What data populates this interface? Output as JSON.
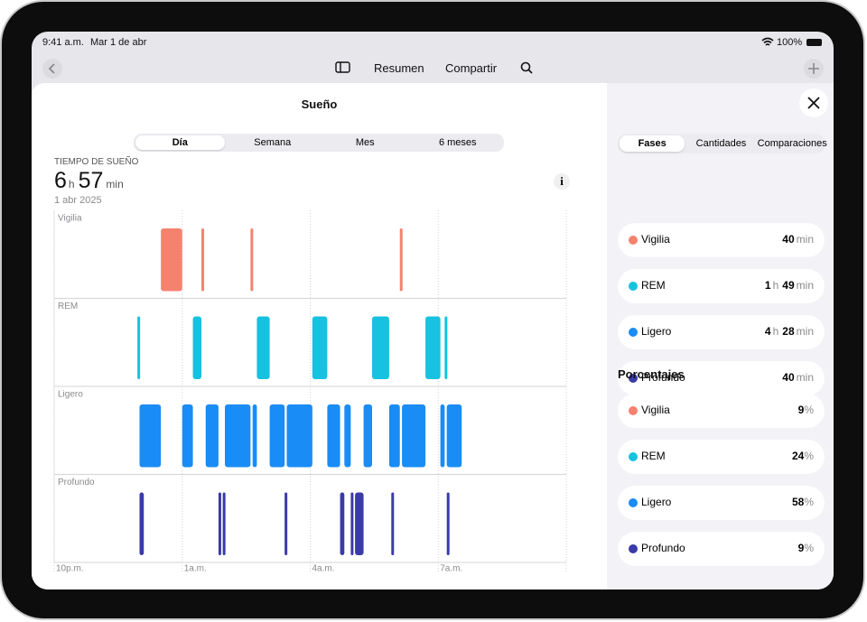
{
  "status_bar": {
    "time": "9:41 a.m.",
    "date": "Mar 1 de abr",
    "battery": "100%"
  },
  "toolbar": {
    "summary": "Resumen",
    "share": "Compartir"
  },
  "title": "Sueño",
  "range_tabs": [
    "Día",
    "Semana",
    "Mes",
    "6 meses"
  ],
  "summary": {
    "label": "TIEMPO DE SUEÑO",
    "hours": 6,
    "hours_unit": "h",
    "minutes": 57,
    "minutes_unit": "min",
    "date": "1 abr 2025"
  },
  "chart_data": {
    "type": "sleep-stages",
    "xlim": [
      0,
      12
    ],
    "xticks": [
      {
        "value": 0,
        "label": "10p.m."
      },
      {
        "value": 3,
        "label": "1a.m."
      },
      {
        "value": 6,
        "label": "4a.m."
      },
      {
        "value": 9,
        "label": "7a.m."
      }
    ],
    "series": [
      {
        "name": "Vigilia",
        "color": "#f5826e",
        "segments": [
          [
            2.5,
            3.0
          ],
          [
            3.45,
            3.5
          ],
          [
            4.6,
            4.65
          ],
          [
            8.1,
            8.15
          ]
        ]
      },
      {
        "name": "REM",
        "color": "#16c2e0",
        "segments": [
          [
            1.95,
            2.0
          ],
          [
            3.25,
            3.45
          ],
          [
            4.75,
            5.05
          ],
          [
            6.05,
            6.4
          ],
          [
            7.45,
            7.85
          ],
          [
            8.7,
            9.05
          ],
          [
            9.15,
            9.2
          ]
        ]
      },
      {
        "name": "Ligero",
        "color": "#1a8cf5",
        "segments": [
          [
            2.0,
            2.5
          ],
          [
            3.0,
            3.25
          ],
          [
            3.55,
            3.85
          ],
          [
            4.0,
            4.6
          ],
          [
            4.65,
            4.75
          ],
          [
            5.05,
            5.4
          ],
          [
            5.45,
            6.05
          ],
          [
            6.4,
            6.7
          ],
          [
            6.8,
            6.95
          ],
          [
            7.25,
            7.45
          ],
          [
            7.85,
            8.1
          ],
          [
            8.15,
            8.7
          ],
          [
            9.05,
            9.15
          ],
          [
            9.2,
            9.55
          ]
        ]
      },
      {
        "name": "Profundo",
        "color": "#3a3aa8",
        "segments": [
          [
            2.0,
            2.1
          ],
          [
            3.85,
            3.9
          ],
          [
            3.95,
            4.0
          ],
          [
            5.4,
            5.45
          ],
          [
            6.7,
            6.8
          ],
          [
            6.95,
            7.0
          ],
          [
            7.05,
            7.25
          ],
          [
            7.9,
            7.95
          ],
          [
            9.2,
            9.25
          ]
        ]
      }
    ]
  },
  "side_tabs": [
    "Fases",
    "Cantidades",
    "Comparaciones"
  ],
  "phases": [
    {
      "name": "Vigilia",
      "color": "#f5826e",
      "parts": [
        {
          "value": 40,
          "unit": "min"
        }
      ]
    },
    {
      "name": "REM",
      "color": "#16c2e0",
      "parts": [
        {
          "value": 1,
          "unit": "h"
        },
        {
          "value": 49,
          "unit": "min"
        }
      ]
    },
    {
      "name": "Ligero",
      "color": "#1a8cf5",
      "parts": [
        {
          "value": 4,
          "unit": "h"
        },
        {
          "value": 28,
          "unit": "min"
        }
      ]
    },
    {
      "name": "Profundo",
      "color": "#3a3aa8",
      "parts": [
        {
          "value": 40,
          "unit": "min"
        }
      ]
    }
  ],
  "percent_title": "Porcentajes",
  "percentages": [
    {
      "name": "Vigilia",
      "color": "#f5826e",
      "value": 9,
      "unit": "%"
    },
    {
      "name": "REM",
      "color": "#16c2e0",
      "value": 24,
      "unit": "%"
    },
    {
      "name": "Ligero",
      "color": "#1a8cf5",
      "value": 58,
      "unit": "%"
    },
    {
      "name": "Profundo",
      "color": "#3a3aa8",
      "value": 9,
      "unit": "%"
    }
  ]
}
